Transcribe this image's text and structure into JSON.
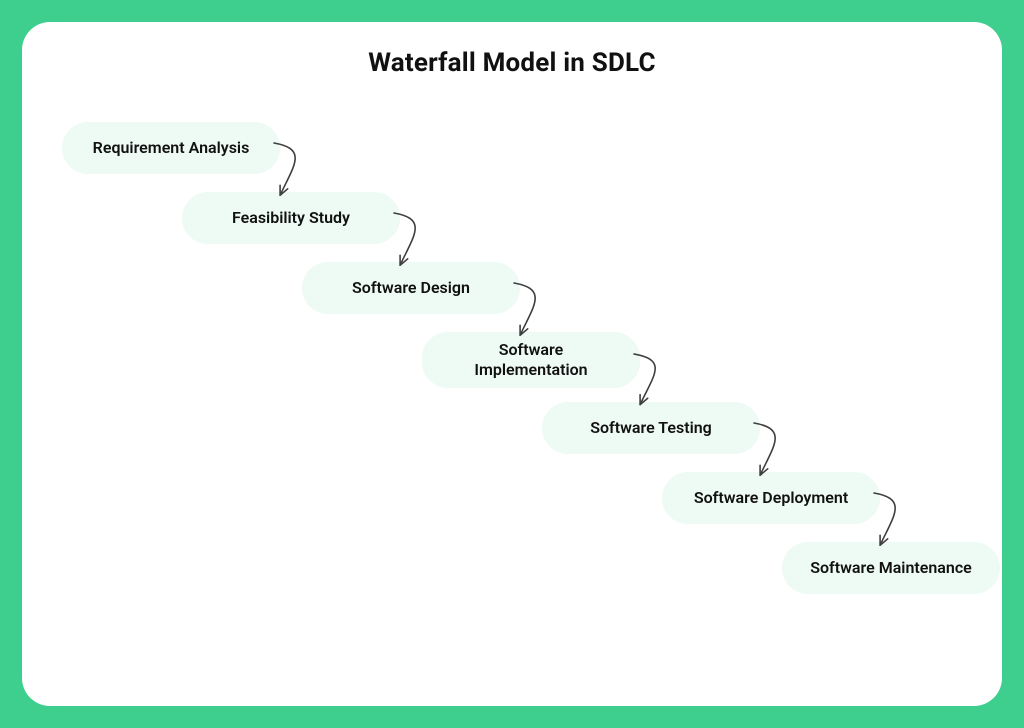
{
  "diagram": {
    "title": "Waterfall Model in SDLC",
    "title_fontsize": 26,
    "title_color": "#111111",
    "outer_bg": "#3ecf8e",
    "card_bg": "#ffffff",
    "card_radius": 28,
    "step_fill": "#eefaf4",
    "step_radius": 26,
    "step_text_color": "#111111",
    "step_fontsize": 16,
    "step_fontweight": 600,
    "step_width": 218,
    "step_height": 52,
    "step_h_offset": 120,
    "step_v_offset": 70,
    "arrow_color": "#3f3f3f",
    "arrow_width": 1.6,
    "steps": [
      {
        "label": "Requirement Analysis"
      },
      {
        "label": "Feasibility Study"
      },
      {
        "label": "Software Design"
      },
      {
        "label": "Software\nImplementation",
        "height": 56
      },
      {
        "label": "Software Testing"
      },
      {
        "label": "Software Deployment"
      },
      {
        "label": "Software Maintenance"
      }
    ]
  }
}
